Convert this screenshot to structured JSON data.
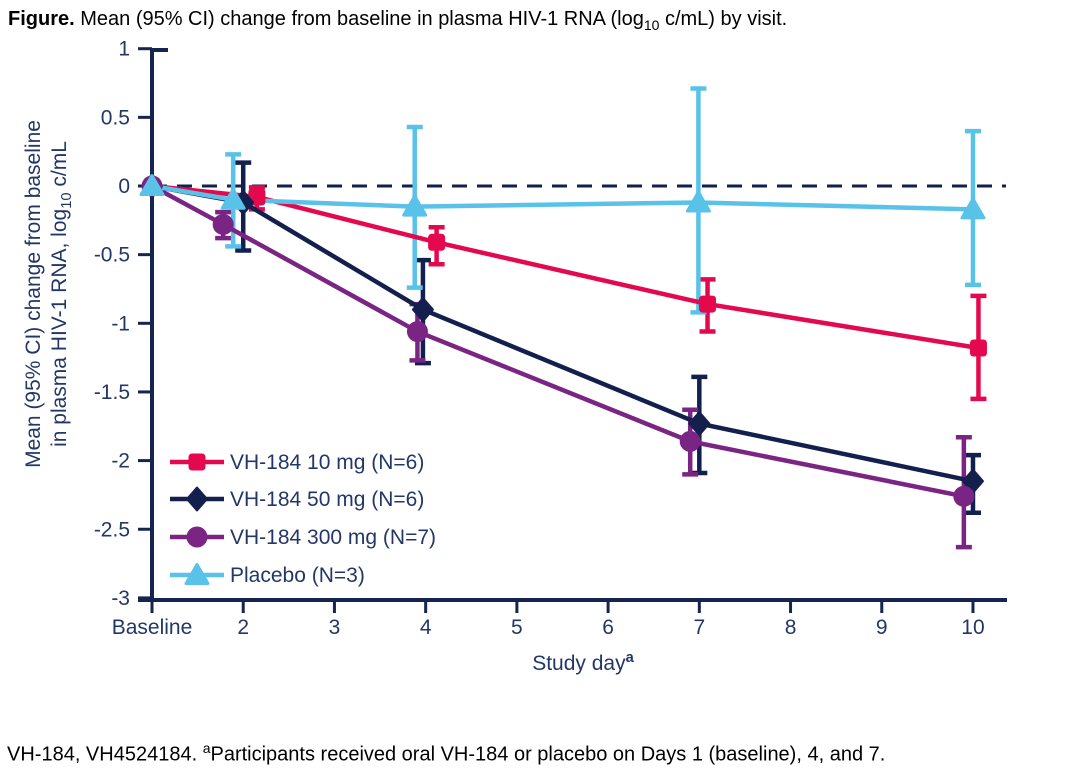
{
  "title": {
    "prefix": "Figure.",
    "body_pre": " Mean (95% CI) change from baseline in plasma HIV-1 RNA (log",
    "body_sub": "10",
    "body_post": " c/mL) by visit."
  },
  "footnote": {
    "pre": "VH-184, VH4524184. ",
    "sup": "a",
    "post": "Participants received oral VH-184 or placebo on Days 1 (baseline), 4, and 7."
  },
  "axes": {
    "x_label": "Study day",
    "x_label_sup": "a",
    "y_label_line1": "Mean (95% CI) change from baseline",
    "y_label_line2_pre": "in plasma HIV-1 RNA, log",
    "y_label_sub": "10",
    "y_label_line2_post": " c/mL"
  },
  "style": {
    "background": "#FFFFFF",
    "axis_color": "#16254F",
    "tick_text_color": "#233767",
    "zero_line_color": "#13204E"
  },
  "chart_data": {
    "type": "line",
    "title": "Mean (95% CI) change from baseline in plasma HIV-1 RNA (log10 c/mL) by visit",
    "xlabel": "Study day",
    "ylabel": "Mean (95% CI) change from baseline in plasma HIV-1 RNA, log10 c/mL",
    "xlim": [
      1,
      10
    ],
    "ylim": [
      -3,
      1
    ],
    "grid": false,
    "zero_reference_line": {
      "style": "dashed",
      "color": "#13204E"
    },
    "legend_position": "inside-bottom-left",
    "x_ticks": [
      {
        "x": 1,
        "label": "Baseline"
      },
      {
        "x": 2,
        "label": "2"
      },
      {
        "x": 3,
        "label": "3"
      },
      {
        "x": 4,
        "label": "4"
      },
      {
        "x": 5,
        "label": "5"
      },
      {
        "x": 6,
        "label": "6"
      },
      {
        "x": 7,
        "label": "7"
      },
      {
        "x": 8,
        "label": "8"
      },
      {
        "x": 9,
        "label": "9"
      },
      {
        "x": 10,
        "label": "10"
      }
    ],
    "y_ticks": [
      {
        "v": 1,
        "label": "1"
      },
      {
        "v": 0.5,
        "label": "0.5"
      },
      {
        "v": 0,
        "label": "0"
      },
      {
        "v": -0.5,
        "label": "-0.5"
      },
      {
        "v": -1,
        "label": "-1"
      },
      {
        "v": -1.5,
        "label": "-1.5"
      },
      {
        "v": -2,
        "label": "-2"
      },
      {
        "v": -2.5,
        "label": "-2.5"
      },
      {
        "v": -3,
        "label": "-3"
      }
    ],
    "series": [
      {
        "name": "VH-184 10 mg (N=6)",
        "marker": "square",
        "color": "#E4094E",
        "points": [
          {
            "x": 1.0,
            "y": 0.0,
            "lo": 0.0,
            "hi": 0.0
          },
          {
            "x": 2.15,
            "y": -0.08,
            "lo": -0.17,
            "hi": -0.01
          },
          {
            "x": 4.12,
            "y": -0.41,
            "lo": -0.57,
            "hi": -0.3
          },
          {
            "x": 7.09,
            "y": -0.86,
            "lo": -1.06,
            "hi": -0.68
          },
          {
            "x": 10.06,
            "y": -1.18,
            "lo": -1.55,
            "hi": -0.8
          }
        ]
      },
      {
        "name": "VH-184 50 mg (N=6)",
        "marker": "diamond",
        "color": "#13204E",
        "points": [
          {
            "x": 1.0,
            "y": 0.0,
            "lo": 0.0,
            "hi": 0.0
          },
          {
            "x": 2.0,
            "y": -0.12,
            "lo": -0.47,
            "hi": 0.17
          },
          {
            "x": 3.97,
            "y": -0.9,
            "lo": -1.29,
            "hi": -0.54
          },
          {
            "x": 7.0,
            "y": -1.73,
            "lo": -2.09,
            "hi": -1.39
          },
          {
            "x": 10.0,
            "y": -2.15,
            "lo": -2.38,
            "hi": -1.96
          }
        ]
      },
      {
        "name": "VH-184 300 mg (N=7)",
        "marker": "circle",
        "color": "#7A2483",
        "points": [
          {
            "x": 1.0,
            "y": 0.0,
            "lo": 0.0,
            "hi": 0.0
          },
          {
            "x": 1.78,
            "y": -0.28,
            "lo": -0.38,
            "hi": -0.19
          },
          {
            "x": 3.91,
            "y": -1.06,
            "lo": -1.27,
            "hi": -0.86
          },
          {
            "x": 6.9,
            "y": -1.86,
            "lo": -2.1,
            "hi": -1.63
          },
          {
            "x": 9.9,
            "y": -2.26,
            "lo": -2.63,
            "hi": -1.83
          }
        ]
      },
      {
        "name": "Placebo (N=3)",
        "marker": "triangle",
        "color": "#59C2E8",
        "points": [
          {
            "x": 1.0,
            "y": 0.0,
            "lo": 0.0,
            "hi": 0.0
          },
          {
            "x": 1.89,
            "y": -0.1,
            "lo": -0.44,
            "hi": 0.23
          },
          {
            "x": 3.88,
            "y": -0.15,
            "lo": -0.74,
            "hi": 0.43
          },
          {
            "x": 6.99,
            "y": -0.12,
            "lo": -0.92,
            "hi": 0.71
          },
          {
            "x": 10.0,
            "y": -0.17,
            "lo": -0.72,
            "hi": 0.4
          }
        ]
      }
    ]
  }
}
